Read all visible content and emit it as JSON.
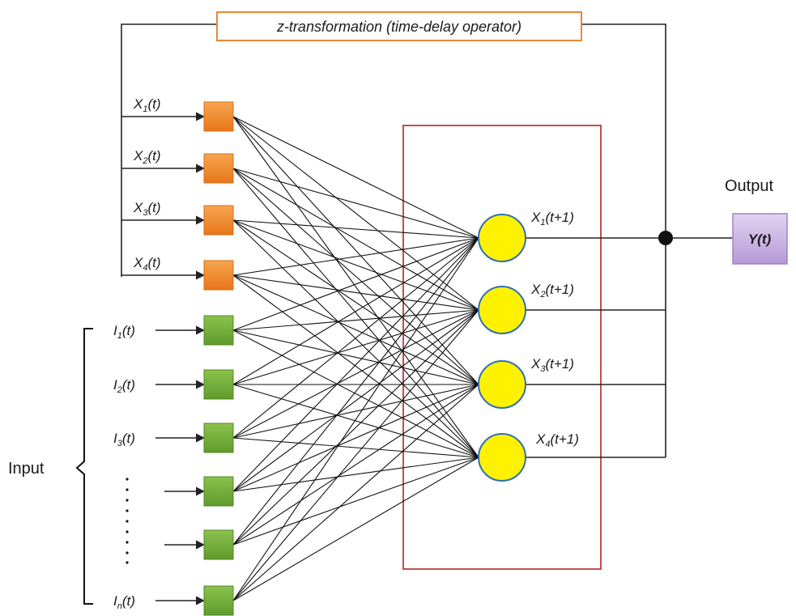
{
  "feedback_box": {
    "label": "z-transformation (time-delay operator)",
    "border_color": "#e8873a"
  },
  "state_inputs": [
    {
      "base": "X",
      "sub": "1",
      "tail": "(t)"
    },
    {
      "base": "X",
      "sub": "2",
      "tail": "(t)"
    },
    {
      "base": "X",
      "sub": "3",
      "tail": "(t)"
    },
    {
      "base": "X",
      "sub": "4",
      "tail": "(t)"
    }
  ],
  "external_inputs": [
    {
      "base": "I",
      "sub": "1",
      "tail": "(t)"
    },
    {
      "base": "I",
      "sub": "2",
      "tail": "(t)"
    },
    {
      "base": "I",
      "sub": "3",
      "tail": "(t)"
    },
    {
      "base": "",
      "sub": "",
      "tail": ""
    },
    {
      "base": "",
      "sub": "",
      "tail": ""
    },
    {
      "base": "I",
      "sub": "n",
      "tail": "(t)"
    }
  ],
  "input_group_label": "Input",
  "output_nodes": [
    {
      "base": "X",
      "sub": "1",
      "tail": "(t+1)"
    },
    {
      "base": "X",
      "sub": "2",
      "tail": "(t+1)"
    },
    {
      "base": "X",
      "sub": "3",
      "tail": "(t+1)"
    },
    {
      "base": "X",
      "sub": "4",
      "tail": "(t+1)"
    }
  ],
  "output_label": "Output",
  "output_box_label": "Y(t)",
  "colors": {
    "state_node": "#f08a24",
    "input_node": "#72ad3c",
    "hidden_node": "#fff200",
    "hidden_node_border": "#2f6fb3",
    "layer_box": "#c0504d",
    "output_box": "#cdb8e3"
  }
}
